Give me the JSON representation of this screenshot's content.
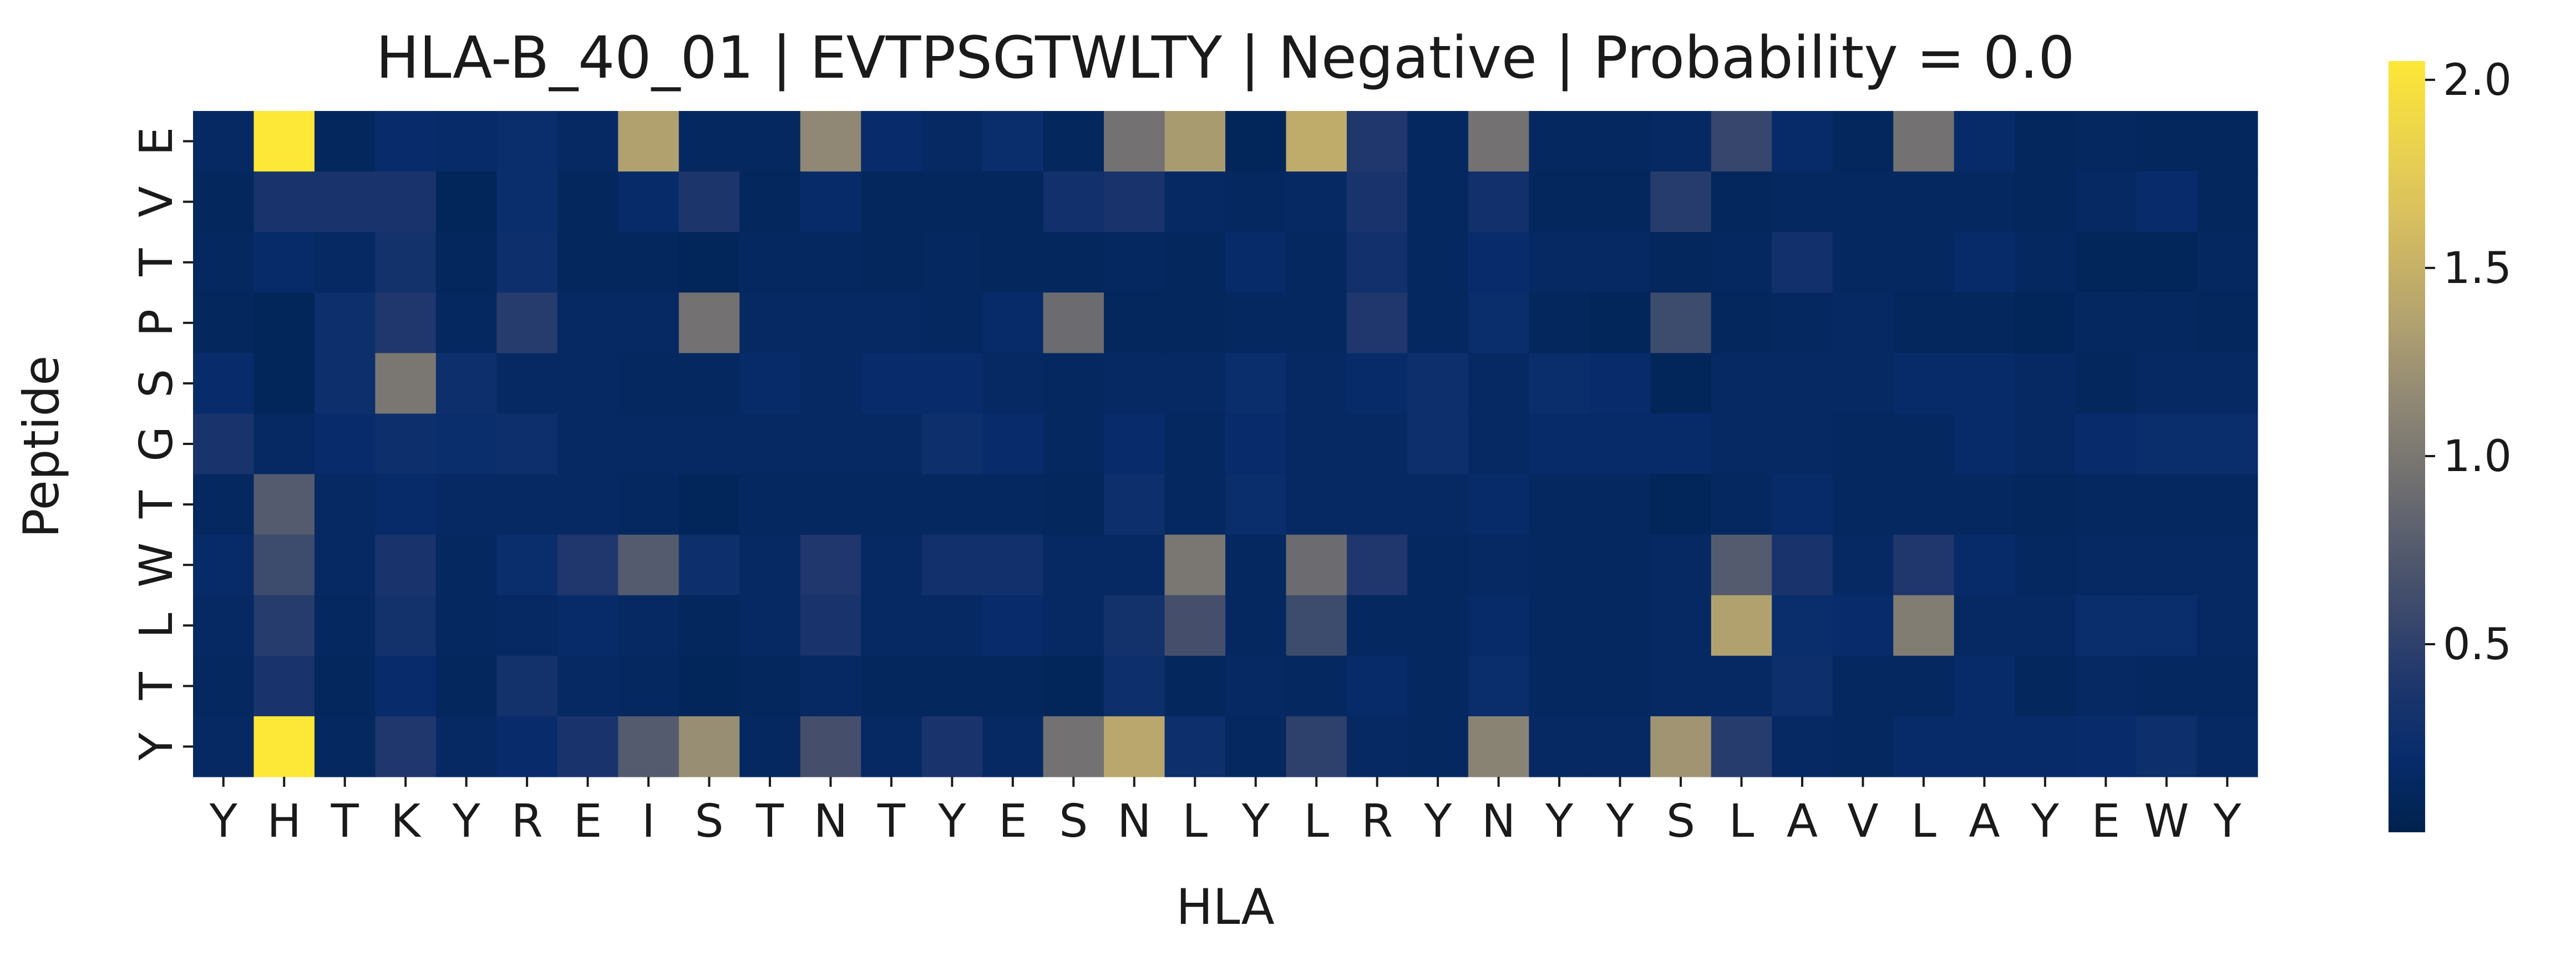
{
  "chart_data": {
    "type": "heatmap",
    "title": "HLA-B_40_01 | EVTPSGTWLTY | Negative | Probability = 0.0",
    "xlabel": "HLA",
    "ylabel": "Peptide",
    "x_ticks": [
      "Y",
      "H",
      "T",
      "K",
      "Y",
      "R",
      "E",
      "I",
      "S",
      "T",
      "N",
      "T",
      "Y",
      "E",
      "S",
      "N",
      "L",
      "Y",
      "L",
      "R",
      "Y",
      "N",
      "Y",
      "Y",
      "S",
      "L",
      "A",
      "V",
      "L",
      "A",
      "Y",
      "E",
      "W",
      "Y"
    ],
    "y_ticks": [
      "E",
      "V",
      "T",
      "P",
      "S",
      "G",
      "T",
      "W",
      "L",
      "T",
      "Y"
    ],
    "colormap": "cividis",
    "color_range": [
      0.0,
      2.05
    ],
    "colorbar_ticks": [
      0.5,
      1.0,
      1.5,
      2.0
    ],
    "colorbar_tick_labels": [
      "0.5",
      "1.0",
      "1.5",
      "2.0"
    ],
    "values": [
      [
        0.15,
        2.05,
        0.1,
        0.2,
        0.18,
        0.22,
        0.15,
        1.35,
        0.12,
        0.12,
        1.15,
        0.2,
        0.15,
        0.22,
        0.1,
        0.95,
        1.3,
        0.08,
        1.45,
        0.4,
        0.12,
        0.95,
        0.12,
        0.12,
        0.15,
        0.55,
        0.18,
        0.1,
        0.95,
        0.18,
        0.1,
        0.12,
        0.1,
        0.1
      ],
      [
        0.1,
        0.35,
        0.35,
        0.35,
        0.08,
        0.22,
        0.1,
        0.18,
        0.38,
        0.1,
        0.18,
        0.1,
        0.1,
        0.1,
        0.28,
        0.35,
        0.15,
        0.12,
        0.15,
        0.35,
        0.12,
        0.28,
        0.1,
        0.1,
        0.45,
        0.1,
        0.12,
        0.12,
        0.12,
        0.12,
        0.1,
        0.15,
        0.2,
        0.1
      ],
      [
        0.12,
        0.18,
        0.15,
        0.3,
        0.1,
        0.25,
        0.1,
        0.1,
        0.08,
        0.12,
        0.12,
        0.1,
        0.12,
        0.1,
        0.1,
        0.12,
        0.1,
        0.18,
        0.12,
        0.28,
        0.12,
        0.2,
        0.15,
        0.15,
        0.1,
        0.12,
        0.28,
        0.12,
        0.12,
        0.18,
        0.12,
        0.08,
        0.08,
        0.12
      ],
      [
        0.1,
        0.08,
        0.25,
        0.4,
        0.12,
        0.45,
        0.15,
        0.15,
        0.95,
        0.15,
        0.15,
        0.15,
        0.12,
        0.18,
        0.9,
        0.1,
        0.1,
        0.12,
        0.12,
        0.4,
        0.12,
        0.22,
        0.1,
        0.08,
        0.6,
        0.1,
        0.12,
        0.15,
        0.1,
        0.1,
        0.08,
        0.12,
        0.12,
        0.1
      ],
      [
        0.2,
        0.08,
        0.25,
        1.0,
        0.25,
        0.15,
        0.15,
        0.12,
        0.12,
        0.18,
        0.15,
        0.2,
        0.2,
        0.15,
        0.12,
        0.15,
        0.15,
        0.22,
        0.15,
        0.18,
        0.25,
        0.15,
        0.22,
        0.2,
        0.08,
        0.15,
        0.15,
        0.15,
        0.18,
        0.18,
        0.15,
        0.1,
        0.15,
        0.15
      ],
      [
        0.35,
        0.15,
        0.2,
        0.25,
        0.22,
        0.25,
        0.15,
        0.15,
        0.15,
        0.15,
        0.15,
        0.15,
        0.25,
        0.2,
        0.12,
        0.2,
        0.12,
        0.2,
        0.15,
        0.15,
        0.25,
        0.15,
        0.18,
        0.18,
        0.18,
        0.15,
        0.15,
        0.12,
        0.12,
        0.18,
        0.15,
        0.2,
        0.22,
        0.22
      ],
      [
        0.12,
        0.75,
        0.15,
        0.18,
        0.15,
        0.15,
        0.15,
        0.12,
        0.08,
        0.12,
        0.12,
        0.12,
        0.12,
        0.12,
        0.1,
        0.25,
        0.12,
        0.22,
        0.15,
        0.15,
        0.15,
        0.18,
        0.12,
        0.12,
        0.08,
        0.12,
        0.18,
        0.12,
        0.12,
        0.12,
        0.1,
        0.12,
        0.12,
        0.12
      ],
      [
        0.18,
        0.6,
        0.15,
        0.35,
        0.12,
        0.22,
        0.4,
        0.75,
        0.25,
        0.15,
        0.4,
        0.15,
        0.28,
        0.28,
        0.15,
        0.15,
        1.0,
        0.12,
        0.9,
        0.4,
        0.12,
        0.15,
        0.12,
        0.12,
        0.15,
        0.75,
        0.35,
        0.15,
        0.4,
        0.18,
        0.12,
        0.15,
        0.15,
        0.15
      ],
      [
        0.15,
        0.45,
        0.12,
        0.3,
        0.12,
        0.15,
        0.18,
        0.15,
        0.1,
        0.15,
        0.35,
        0.15,
        0.15,
        0.2,
        0.15,
        0.3,
        0.65,
        0.12,
        0.6,
        0.12,
        0.12,
        0.18,
        0.12,
        0.12,
        0.15,
        1.35,
        0.22,
        0.2,
        1.05,
        0.15,
        0.15,
        0.22,
        0.22,
        0.15
      ],
      [
        0.12,
        0.35,
        0.1,
        0.2,
        0.1,
        0.3,
        0.15,
        0.12,
        0.08,
        0.1,
        0.15,
        0.1,
        0.1,
        0.1,
        0.08,
        0.25,
        0.1,
        0.15,
        0.12,
        0.18,
        0.12,
        0.22,
        0.12,
        0.12,
        0.15,
        0.15,
        0.25,
        0.12,
        0.12,
        0.18,
        0.1,
        0.15,
        0.12,
        0.12
      ],
      [
        0.15,
        2.05,
        0.12,
        0.4,
        0.15,
        0.2,
        0.35,
        0.75,
        1.2,
        0.12,
        0.65,
        0.15,
        0.35,
        0.15,
        0.95,
        1.4,
        0.25,
        0.12,
        0.5,
        0.15,
        0.12,
        1.1,
        0.15,
        0.15,
        1.25,
        0.45,
        0.15,
        0.12,
        0.18,
        0.18,
        0.18,
        0.2,
        0.25,
        0.15
      ]
    ]
  }
}
